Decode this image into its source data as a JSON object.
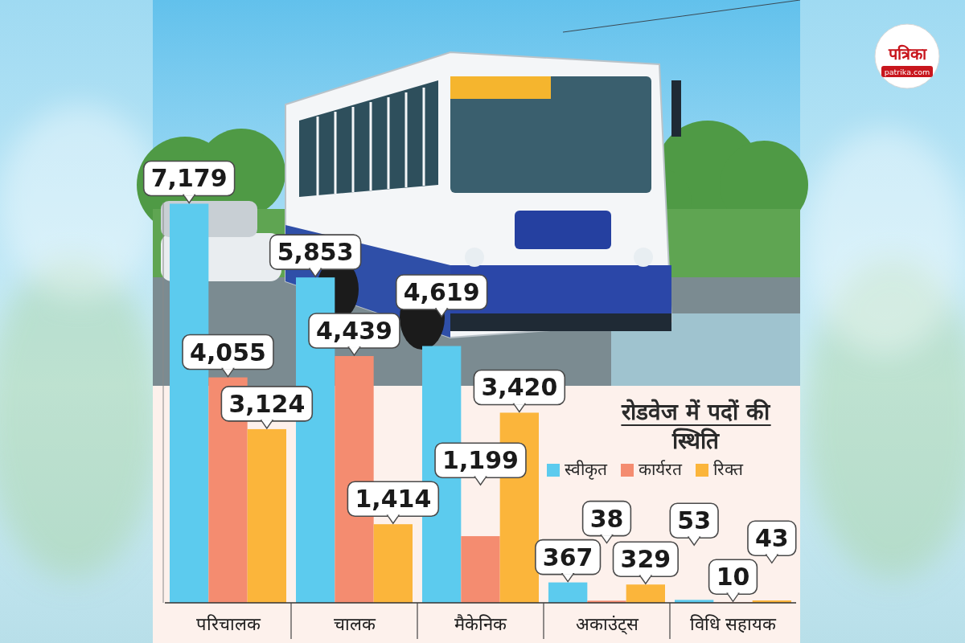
{
  "chart_data": {
    "type": "bar",
    "title": "रोडवेज में पदों की स्थिति",
    "categories": [
      "परिचालक",
      "चालक",
      "मैकेनिक",
      "अकाउंट्स",
      "विधि सहायक"
    ],
    "series": [
      {
        "name": "स्वीकृत",
        "color": "#5ccbee",
        "values": [
          7179,
          5853,
          4619,
          367,
          53
        ],
        "value_labels": [
          "7,179",
          "5,853",
          "4,619",
          "367",
          "53"
        ]
      },
      {
        "name": "कार्यरत",
        "color": "#f48c70",
        "values": [
          4055,
          4439,
          1199,
          38,
          10
        ],
        "value_labels": [
          "4,055",
          "4,439",
          "1,199",
          "38",
          "10"
        ]
      },
      {
        "name": "रिक्त",
        "color": "#fbb53b",
        "values": [
          3124,
          1414,
          3420,
          329,
          43
        ],
        "value_labels": [
          "3,124",
          "1,414",
          "3,420",
          "329",
          "43"
        ]
      }
    ],
    "ylim": [
      0,
      7200
    ],
    "grid": false,
    "legend": "right",
    "data_labels": true,
    "tick_labels": false
  },
  "branding": {
    "name": "पत्रिका",
    "url": "patrika.com"
  }
}
